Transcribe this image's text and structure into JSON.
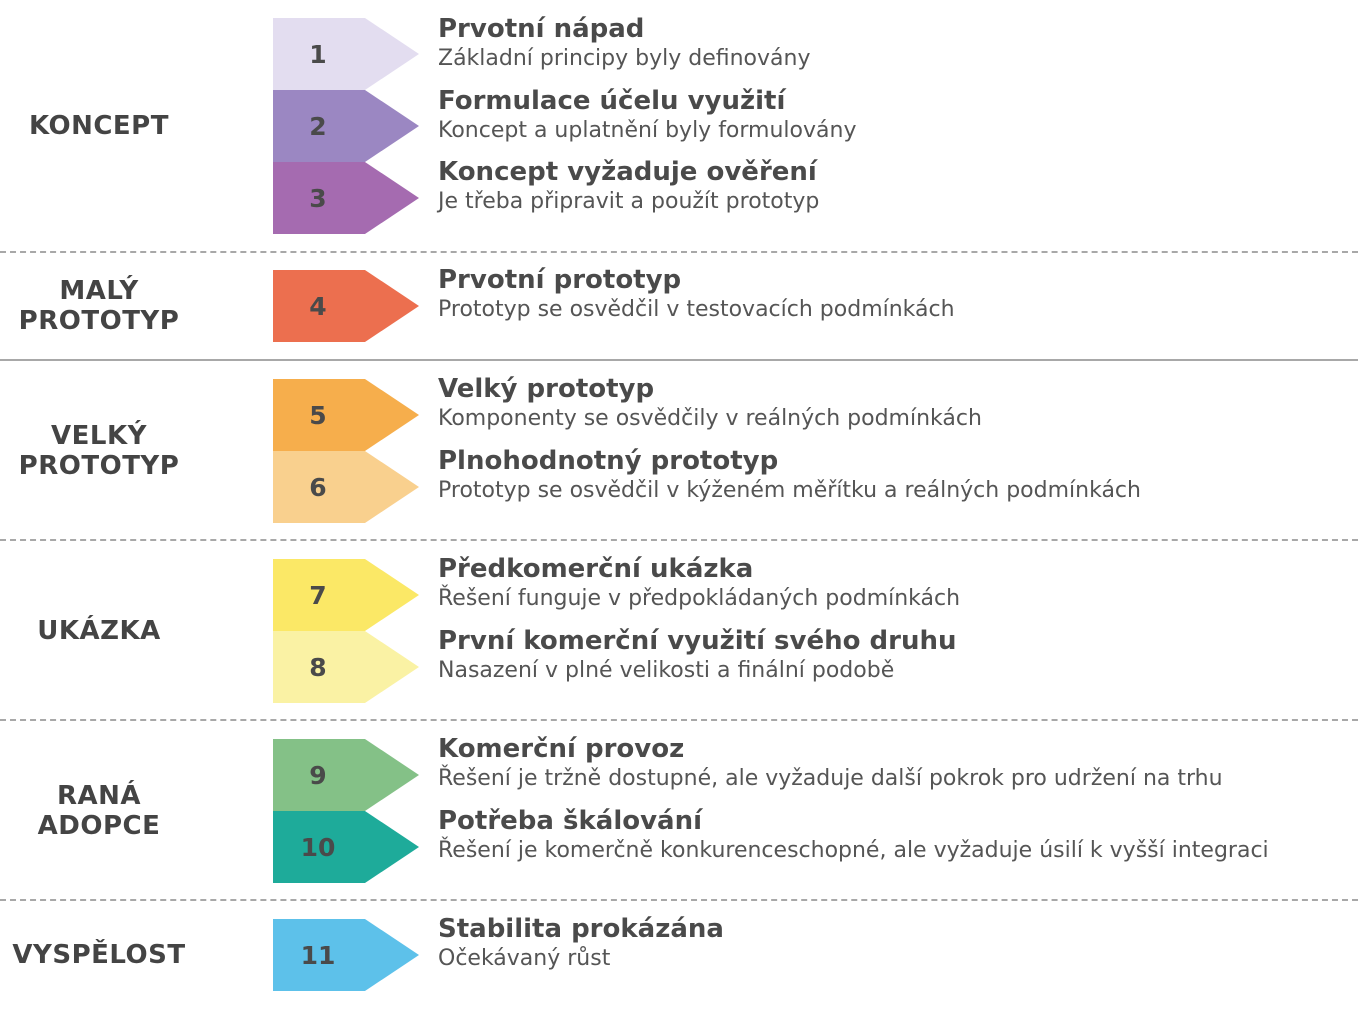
{
  "groups": [
    {
      "lines": [
        "KONCEPT"
      ]
    },
    {
      "lines": [
        "MALÝ",
        "PROTOTYP"
      ]
    },
    {
      "lines": [
        "VELKÝ",
        "PROTOTYP"
      ]
    },
    {
      "lines": [
        "UKÁZKA"
      ]
    },
    {
      "lines": [
        "RANÁ",
        "ADOPCE"
      ]
    },
    {
      "lines": [
        "VYSPĚLOST"
      ]
    }
  ],
  "stages": [
    {
      "num": "1",
      "title": "Prvotní nápad",
      "desc": "Základní principy byly definovány",
      "color": "#e3ddf0"
    },
    {
      "num": "2",
      "title": "Formulace účelu využití",
      "desc": "Koncept a uplatnění byly formulovány",
      "color": "#9b87c2"
    },
    {
      "num": "3",
      "title": "Koncept vyžaduje ověření",
      "desc": "Je třeba připravit a použít prototyp",
      "color": "#a56bb0"
    },
    {
      "num": "4",
      "title": "Prvotní prototyp",
      "desc": "Prototyp se osvědčil v testovacích podmínkách",
      "color": "#ec6f4f"
    },
    {
      "num": "5",
      "title": "Velký prototyp",
      "desc": "Komponenty se osvědčily v reálných podmínkách",
      "color": "#f6ae4c"
    },
    {
      "num": "6",
      "title": "Plnohodnotný prototyp",
      "desc": "Prototyp se osvědčil v kýženém měřítku a reálných podmínkách",
      "color": "#f9d08e"
    },
    {
      "num": "7",
      "title": "Předkomerční ukázka",
      "desc": "Řešení funguje v předpokládaných podmínkách",
      "color": "#fbe866"
    },
    {
      "num": "8",
      "title": "První komerční využití svého druhu",
      "desc": "Nasazení v plné velikosti a finální podobě",
      "color": "#faf2a4"
    },
    {
      "num": "9",
      "title": "Komerční provoz",
      "desc": "Řešení je tržně dostupné, ale vyžaduje další pokrok pro udržení na trhu",
      "color": "#84c187"
    },
    {
      "num": "10",
      "title": "Potřeba škálování",
      "desc": "Řešení je komerčně konkurenceschopné, ale vyžaduje úsilí k vyšší integraci",
      "color": "#1eab9a"
    },
    {
      "num": "11",
      "title": "Stabilita prokázána",
      "desc": "Očekávaný růst",
      "color": "#5dc1ea"
    }
  ]
}
